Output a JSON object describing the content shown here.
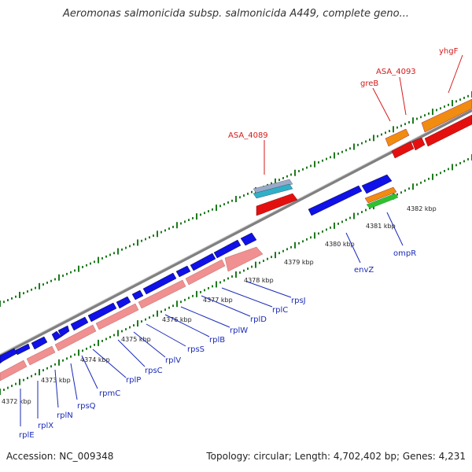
{
  "title": "Aeromonas salmonicida subsp. salmonicida A449, complete geno...",
  "footer": {
    "accession": "Accession: NC_009348",
    "summary": "Topology: circular; Length: 4,702,402 bp; Genes: 4,231"
  },
  "colors": {
    "forward_gene": "#1010e8",
    "reverse_gene": "#e41010",
    "rrna": "#f08c10",
    "trna": "#30c030",
    "pseudo": "#30b0c8",
    "reverse_light": "#f09090",
    "tick": "#1f7a1f"
  },
  "top_labels": [
    {
      "label": "ASA_4089"
    },
    {
      "label": "greB"
    },
    {
      "label": "ASA_4093"
    },
    {
      "label": "yhgF"
    }
  ],
  "kbp_labels": [
    "4372 kbp",
    "4373 kbp",
    "4374 kbp",
    "4375 kbp",
    "4376 kbp",
    "4377 kbp",
    "4378 kbp",
    "4379 kbp",
    "4380 kbp",
    "4381 kbp",
    "4382 kbp"
  ],
  "bottom_labels": [
    "rplE",
    "rplX",
    "rplN",
    "rpsQ",
    "rpmC",
    "rplP",
    "rpsC",
    "rplV",
    "rpsS",
    "rplB",
    "rplW",
    "rplD",
    "rplC",
    "rpsJ",
    "envZ",
    "ompR"
  ]
}
